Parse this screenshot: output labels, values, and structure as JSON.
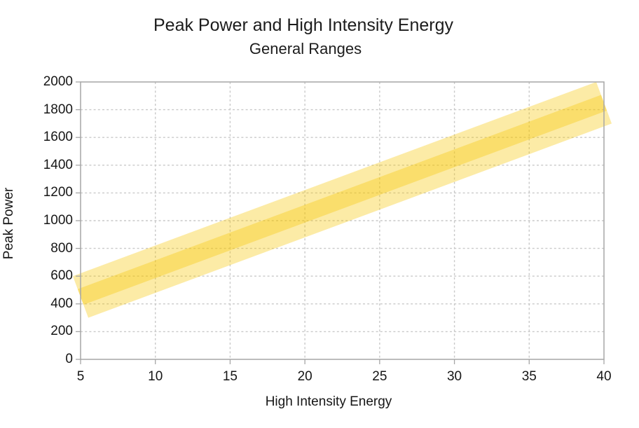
{
  "chart_data": {
    "type": "line",
    "title": "Peak Power and High Intensity Energy",
    "subtitle": "General Ranges",
    "xlabel": "High Intensity Energy",
    "ylabel": "Peak Power",
    "xlim": [
      5,
      40
    ],
    "ylim": [
      0,
      2000
    ],
    "xticks": [
      5,
      10,
      15,
      20,
      25,
      30,
      35,
      40
    ],
    "yticks": [
      0,
      200,
      400,
      600,
      800,
      1000,
      1200,
      1400,
      1600,
      1800,
      2000
    ],
    "grid": {
      "show": true,
      "style": "dashed",
      "axes": "both"
    },
    "legend": {
      "show": false
    },
    "trend_line": {
      "name": "center-trend",
      "x": [
        5,
        40
      ],
      "y": [
        450,
        1850
      ],
      "band_halfwidth": 60
    },
    "range_band": {
      "name": "general-range-band",
      "x": [
        5,
        40
      ],
      "y_center": [
        450,
        1850
      ],
      "halfwidth": 160,
      "lower": [
        290,
        1690
      ],
      "upper": [
        610,
        2010
      ]
    },
    "colors": {
      "band": "#F7C500",
      "band_opacity": 0.35,
      "band_light_apparent": "#FCEAA5",
      "band_dark_apparent": "#FAD56B",
      "grid": "#C9C9C9",
      "axis": "#A6A6A6",
      "text": "#1C1C1C"
    }
  }
}
